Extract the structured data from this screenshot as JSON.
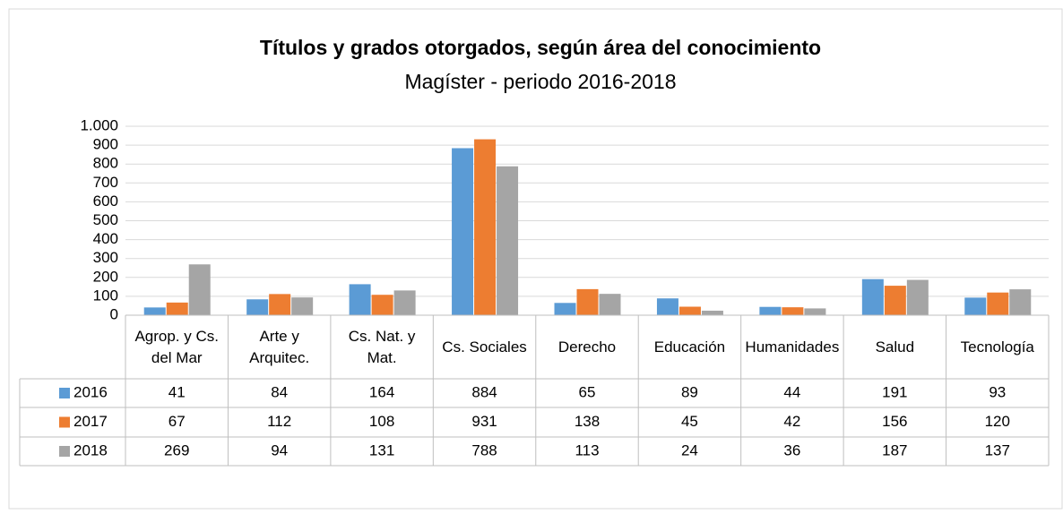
{
  "chart_data": {
    "type": "bar",
    "title": "Títulos y grados otorgados, según área del conocimiento",
    "subtitle": "Magíster  - periodo 2016-2018",
    "categories": [
      "Agrop. y Cs. del Mar",
      "Arte y Arquitec.",
      "Cs. Nat. y Mat.",
      "Cs. Sociales",
      "Derecho",
      "Educación",
      "Humanidades",
      "Salud",
      "Tecnología"
    ],
    "series": [
      {
        "name": "2016",
        "color": "#5b9bd5",
        "values": [
          41,
          84,
          164,
          884,
          65,
          89,
          44,
          191,
          93
        ]
      },
      {
        "name": "2017",
        "color": "#ed7d31",
        "values": [
          67,
          112,
          108,
          931,
          138,
          45,
          42,
          156,
          120
        ]
      },
      {
        "name": "2018",
        "color": "#a5a5a5",
        "values": [
          269,
          94,
          131,
          788,
          113,
          24,
          36,
          187,
          137
        ]
      }
    ],
    "ylim": [
      0,
      1000
    ],
    "yticks": [
      0,
      100,
      200,
      300,
      400,
      500,
      600,
      700,
      800,
      900,
      {
        "value": 1000,
        "label": "1.000"
      }
    ],
    "grid": true,
    "data_table": true
  }
}
